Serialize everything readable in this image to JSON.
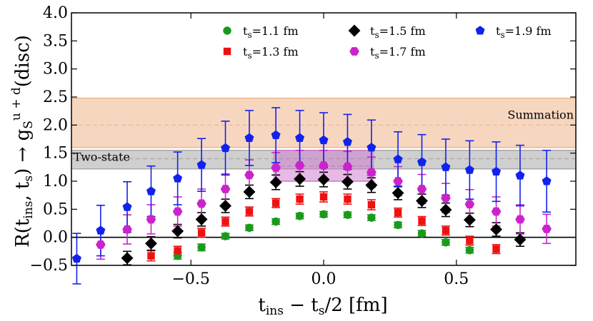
{
  "chart_data": {
    "type": "scatter",
    "xlabel": "t_ins − t_s/2 [fm]",
    "ylabel": "R(t_ins, t_s) → g_S^{u+d}(disc)",
    "xlim": [
      -0.95,
      0.95
    ],
    "ylim": [
      -0.5,
      4.0
    ],
    "x_ticks": [
      {
        "value": -0.5,
        "label": "−0.5"
      },
      {
        "value": 0.0,
        "label": "0.0"
      },
      {
        "value": 0.5,
        "label": "0.5"
      }
    ],
    "y_ticks": [
      {
        "value": -0.5,
        "label": "−0.5"
      },
      {
        "value": 0.0,
        "label": "0.0"
      },
      {
        "value": 0.5,
        "label": "0.5"
      },
      {
        "value": 1.0,
        "label": "1.0"
      },
      {
        "value": 1.5,
        "label": "1.5"
      },
      {
        "value": 2.0,
        "label": "2.0"
      },
      {
        "value": 2.5,
        "label": "2.5"
      },
      {
        "value": 3.0,
        "label": "3.0"
      },
      {
        "value": 3.5,
        "label": "3.5"
      },
      {
        "value": 4.0,
        "label": "4.0"
      }
    ],
    "bands": [
      {
        "name": "Summation",
        "label": "Summation",
        "y_low": 1.6,
        "y_high": 2.48,
        "center": 2.0,
        "color": "#f0b48c",
        "opacity": 0.55,
        "label_position": "right"
      },
      {
        "name": "Two-state",
        "label": "Two-state",
        "y_low": 1.22,
        "y_high": 1.55,
        "center": 1.4,
        "color": "#a8a8a8",
        "opacity": 0.55,
        "label_position": "left"
      },
      {
        "name": "plateau",
        "label": "",
        "x_range": [
          -0.19,
          0.19
        ],
        "y_low": 1.0,
        "y_high": 1.55,
        "center": 1.27,
        "color": "#cc77cc",
        "opacity": 0.5,
        "label_position": ""
      }
    ],
    "legend_position": "top",
    "series": [
      {
        "name": "ts=1.1 fm",
        "base": "t",
        "sub": "s",
        "rest": "=1.1 fm",
        "color": "#1a9a1a",
        "marker": "circle",
        "x": [
          -0.55,
          -0.46,
          -0.37,
          -0.28,
          -0.18,
          -0.09,
          0.0,
          0.09,
          0.18,
          0.28,
          0.37,
          0.46,
          0.55
        ],
        "y": [
          -0.33,
          -0.18,
          0.02,
          0.17,
          0.28,
          0.38,
          0.41,
          0.4,
          0.35,
          0.22,
          0.07,
          -0.09,
          -0.23
        ],
        "err": [
          0.06,
          0.06,
          0.05,
          0.05,
          0.05,
          0.05,
          0.05,
          0.05,
          0.05,
          0.05,
          0.05,
          0.05,
          0.05
        ]
      },
      {
        "name": "ts=1.3 fm",
        "base": "t",
        "sub": "s",
        "rest": "=1.3 fm",
        "color": "#ee1111",
        "marker": "square",
        "x": [
          -0.65,
          -0.55,
          -0.46,
          -0.37,
          -0.28,
          -0.18,
          -0.09,
          0.0,
          0.09,
          0.18,
          0.28,
          0.37,
          0.46,
          0.55,
          0.65
        ],
        "y": [
          -0.33,
          -0.24,
          0.08,
          0.28,
          0.46,
          0.61,
          0.68,
          0.72,
          0.68,
          0.58,
          0.44,
          0.29,
          0.12,
          -0.06,
          -0.21
        ],
        "err": [
          0.09,
          0.08,
          0.08,
          0.08,
          0.08,
          0.08,
          0.09,
          0.09,
          0.09,
          0.09,
          0.08,
          0.08,
          0.08,
          0.08,
          0.08
        ]
      },
      {
        "name": "ts=1.5 fm",
        "base": "t",
        "sub": "s",
        "rest": "=1.5 fm",
        "color": "#000000",
        "marker": "diamond",
        "x": [
          -0.74,
          -0.65,
          -0.55,
          -0.46,
          -0.37,
          -0.28,
          -0.18,
          -0.09,
          0.0,
          0.09,
          0.18,
          0.28,
          0.37,
          0.46,
          0.55,
          0.65,
          0.74
        ],
        "y": [
          -0.37,
          -0.11,
          0.11,
          0.32,
          0.56,
          0.81,
          0.98,
          1.04,
          1.03,
          0.99,
          0.93,
          0.79,
          0.65,
          0.49,
          0.31,
          0.14,
          -0.04
        ],
        "err": [
          0.12,
          0.12,
          0.12,
          0.12,
          0.12,
          0.12,
          0.13,
          0.13,
          0.13,
          0.13,
          0.13,
          0.12,
          0.12,
          0.12,
          0.12,
          0.12,
          0.12
        ]
      },
      {
        "name": "ts=1.7 fm",
        "base": "t",
        "sub": "s",
        "rest": "=1.7 fm",
        "color": "#cc22cc",
        "marker": "hexagon",
        "x": [
          -0.84,
          -0.74,
          -0.65,
          -0.55,
          -0.46,
          -0.37,
          -0.28,
          -0.18,
          -0.09,
          0.0,
          0.09,
          0.18,
          0.28,
          0.37,
          0.46,
          0.55,
          0.65,
          0.74,
          0.84
        ],
        "y": [
          -0.13,
          0.14,
          0.32,
          0.46,
          0.6,
          0.86,
          1.11,
          1.24,
          1.28,
          1.28,
          1.26,
          1.16,
          1.0,
          0.86,
          0.7,
          0.59,
          0.46,
          0.32,
          0.15
        ],
        "err": [
          0.26,
          0.26,
          0.26,
          0.26,
          0.26,
          0.27,
          0.27,
          0.27,
          0.27,
          0.27,
          0.27,
          0.27,
          0.26,
          0.26,
          0.26,
          0.26,
          0.26,
          0.26,
          0.26
        ]
      },
      {
        "name": "ts=1.9 fm",
        "base": "t",
        "sub": "s",
        "rest": "=1.9 fm",
        "color": "#1122ee",
        "marker": "pentagon",
        "x": [
          -0.93,
          -0.84,
          -0.74,
          -0.65,
          -0.55,
          -0.46,
          -0.37,
          -0.28,
          -0.18,
          -0.09,
          0.0,
          0.09,
          0.18,
          0.28,
          0.37,
          0.46,
          0.55,
          0.65,
          0.74,
          0.84
        ],
        "y": [
          -0.38,
          0.12,
          0.54,
          0.82,
          1.05,
          1.29,
          1.59,
          1.77,
          1.82,
          1.77,
          1.73,
          1.7,
          1.6,
          1.39,
          1.34,
          1.25,
          1.2,
          1.17,
          1.1,
          1.0
        ],
        "err": [
          0.45,
          0.45,
          0.45,
          0.45,
          0.47,
          0.47,
          0.48,
          0.49,
          0.49,
          0.49,
          0.49,
          0.49,
          0.49,
          0.49,
          0.49,
          0.5,
          0.52,
          0.53,
          0.54,
          0.55
        ]
      }
    ]
  }
}
